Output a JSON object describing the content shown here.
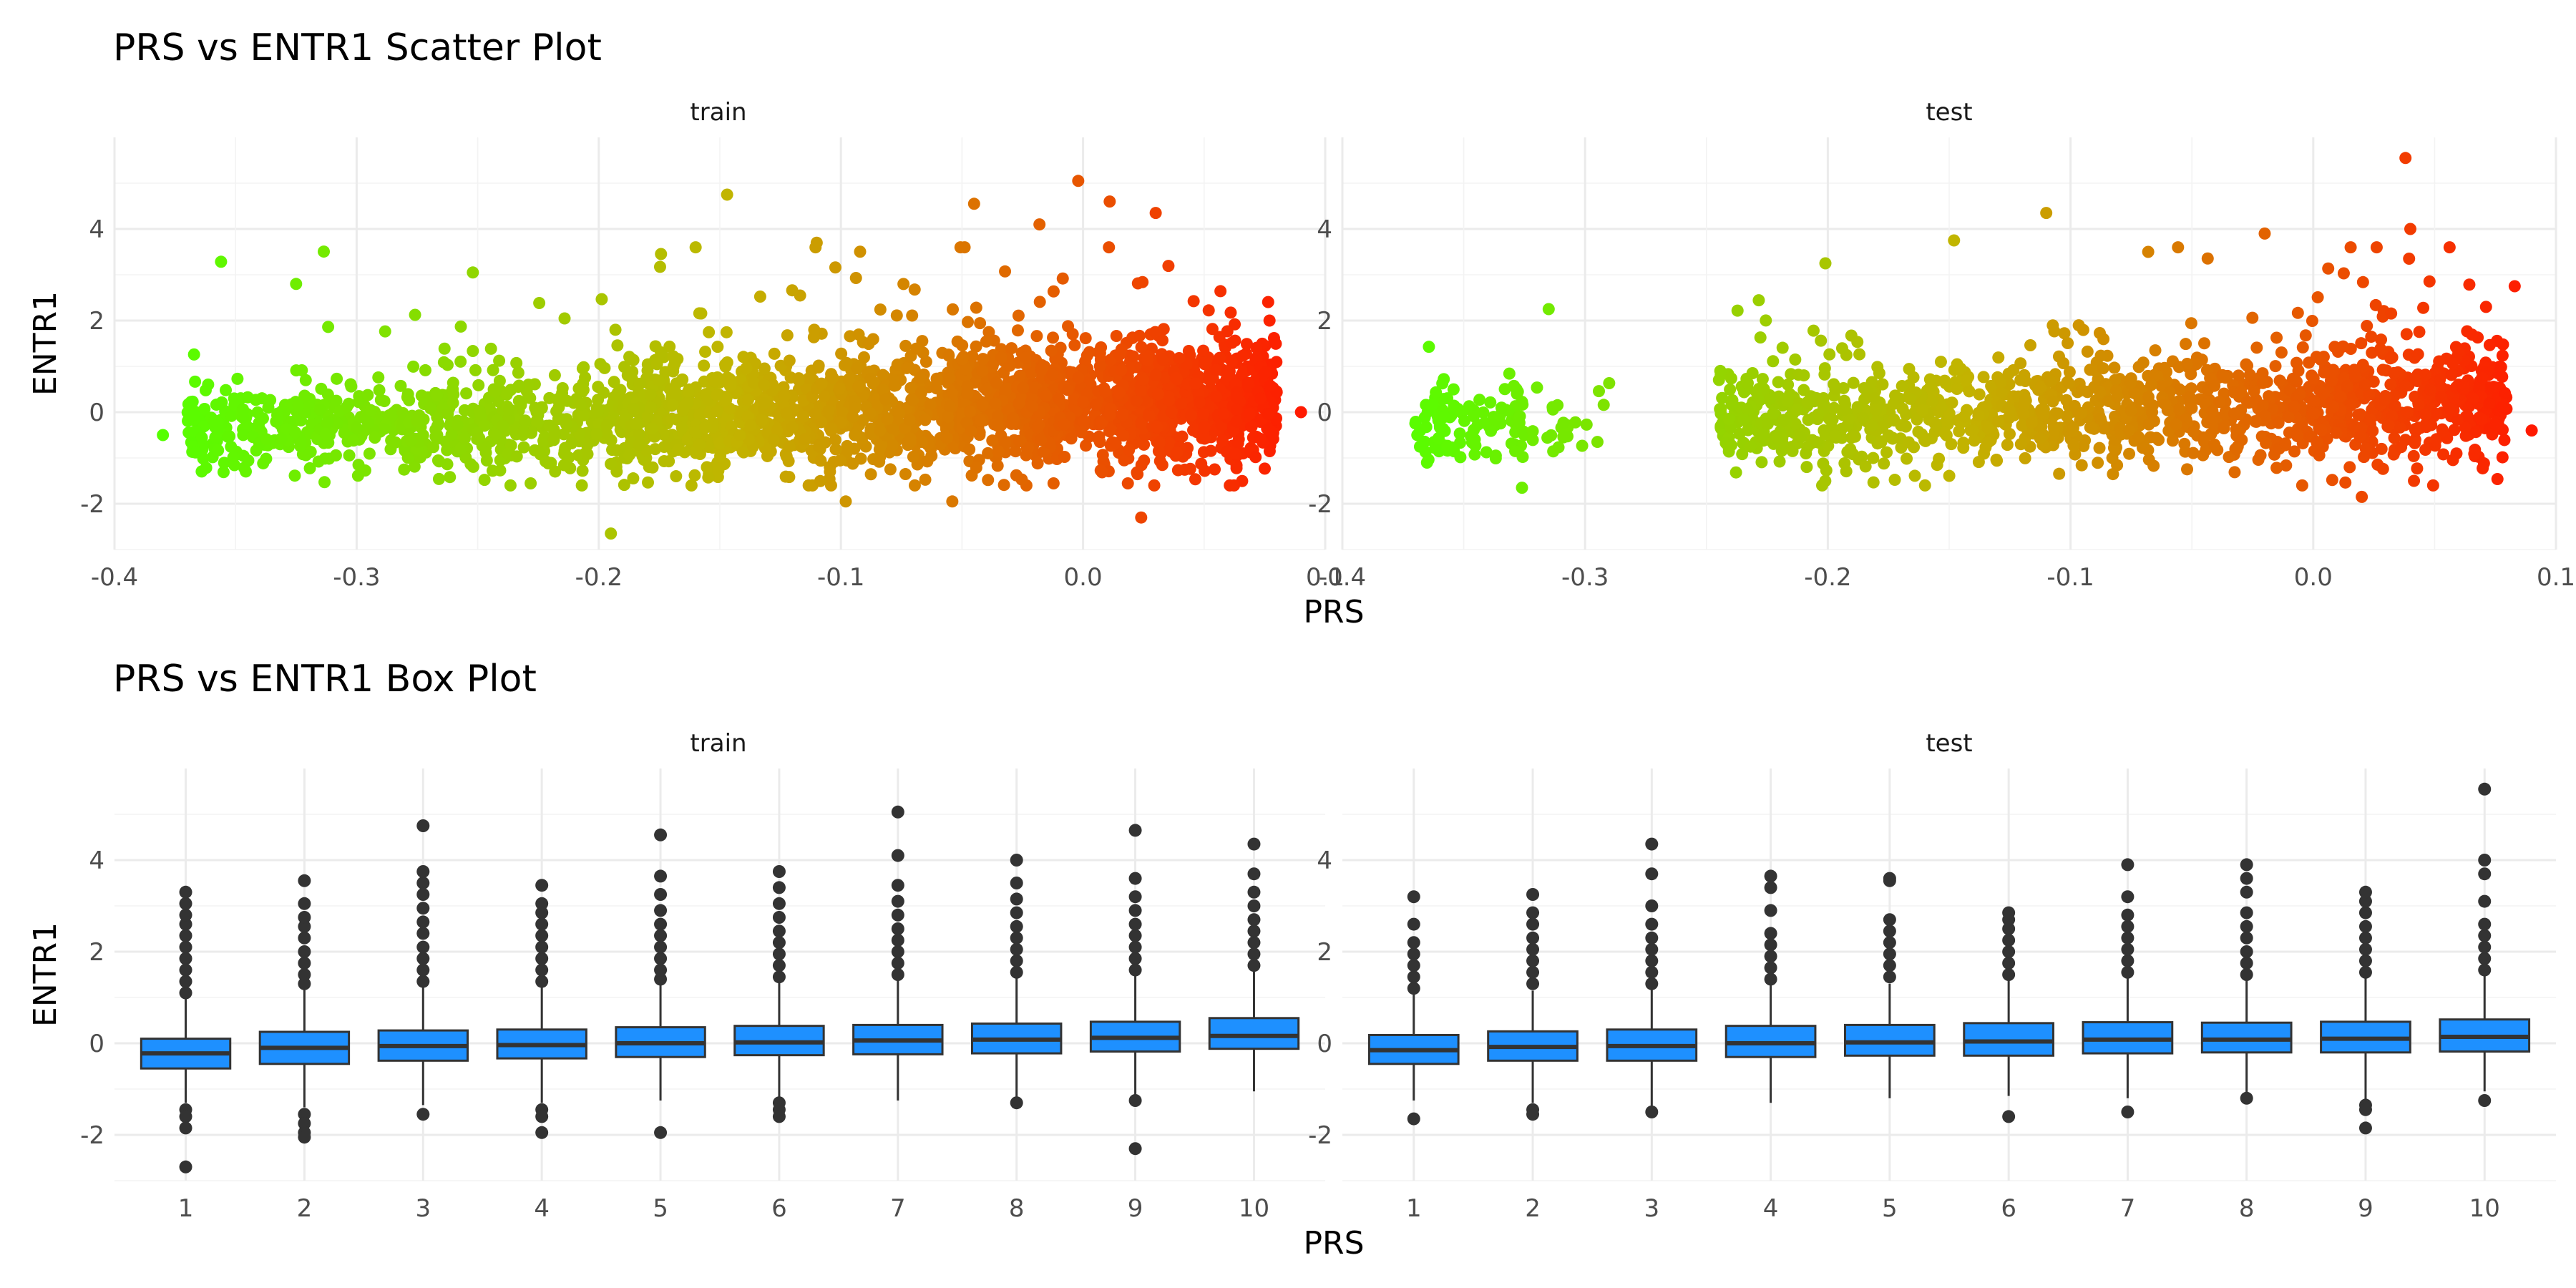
{
  "colors": {
    "low": "#55ff00",
    "mid": "#c2b400",
    "high": "#ff1a00",
    "box_fill": "#1e90ff",
    "box_line": "#333333",
    "outlier": "#333333",
    "grid": "#ebebeb"
  },
  "chart_data": [
    {
      "type": "scatter",
      "title": "PRS vs ENTR1 Scatter Plot",
      "xlabel": "PRS",
      "ylabel": "ENTR1",
      "grid": true,
      "color_scale": "PRS (green to red)",
      "panels": [
        {
          "label": "train",
          "xlim": [
            -0.4,
            0.1
          ],
          "ylim": [
            -3,
            6
          ],
          "xticks": [
            "-0.4",
            "-0.3",
            "-0.2",
            "-0.1",
            "0.0",
            "0.1"
          ],
          "yticks": [
            "-2",
            "0",
            "2",
            "4"
          ],
          "clusters": [
            {
              "x": [
                -0.37,
                -0.27
              ],
              "y_center": -0.3,
              "y_spread": 0.45,
              "n": 320
            },
            {
              "x": [
                -0.27,
                -0.19
              ],
              "y_center": -0.2,
              "y_spread": 0.55,
              "n": 300
            },
            {
              "x": [
                -0.19,
                -0.05
              ],
              "y_center": 0.0,
              "y_spread": 0.65,
              "n": 900
            },
            {
              "x": [
                -0.05,
                0.08
              ],
              "y_center": 0.2,
              "y_spread": 0.7,
              "n": 1100
            }
          ],
          "notable_points": [
            {
              "x": -0.38,
              "y": -0.5
            },
            {
              "x": 0.09,
              "y": 0.0
            },
            {
              "x": -0.147,
              "y": 4.75
            },
            {
              "x": -0.002,
              "y": 5.05
            },
            {
              "x": 0.011,
              "y": 4.6
            },
            {
              "x": -0.045,
              "y": 4.55
            },
            {
              "x": -0.195,
              "y": -2.65
            },
            {
              "x": 0.024,
              "y": -2.3
            },
            {
              "x": -0.098,
              "y": -1.95
            },
            {
              "x": -0.054,
              "y": -1.95
            },
            {
              "x": -0.252,
              "y": 3.05
            },
            {
              "x": -0.325,
              "y": 2.8
            },
            {
              "x": -0.018,
              "y": 4.1
            },
            {
              "x": 0.03,
              "y": 4.35
            },
            {
              "x": 0.077,
              "y": 2.0
            },
            {
              "x": -0.16,
              "y": 3.6
            },
            {
              "x": -0.11,
              "y": 3.7
            }
          ]
        },
        {
          "label": "test",
          "xlim": [
            -0.4,
            0.1
          ],
          "ylim": [
            -3,
            6
          ],
          "xticks": [
            "-0.4",
            "-0.3",
            "-0.2",
            "-0.1",
            "0.0",
            "0.1"
          ],
          "yticks": [
            "-2",
            "0",
            "2",
            "4"
          ],
          "clusters": [
            {
              "x": [
                -0.37,
                -0.325
              ],
              "y_center": -0.3,
              "y_spread": 0.45,
              "n": 110
            },
            {
              "x": [
                -0.325,
                -0.29
              ],
              "y_center": -0.2,
              "y_spread": 0.4,
              "n": 25
            },
            {
              "x": [
                -0.245,
                -0.13
              ],
              "y_center": -0.1,
              "y_spread": 0.55,
              "n": 420
            },
            {
              "x": [
                -0.13,
                0.0
              ],
              "y_center": 0.05,
              "y_spread": 0.6,
              "n": 520
            },
            {
              "x": [
                0.0,
                0.08
              ],
              "y_center": 0.2,
              "y_spread": 0.65,
              "n": 420
            }
          ],
          "notable_points": [
            {
              "x": 0.038,
              "y": 5.55
            },
            {
              "x": -0.11,
              "y": 4.35
            },
            {
              "x": 0.04,
              "y": 4.0
            },
            {
              "x": -0.148,
              "y": 3.75
            },
            {
              "x": -0.201,
              "y": 3.25
            },
            {
              "x": 0.02,
              "y": -1.85
            },
            {
              "x": -0.326,
              "y": -1.65
            },
            {
              "x": 0.09,
              "y": -0.4
            },
            {
              "x": 0.083,
              "y": 2.75
            },
            {
              "x": -0.315,
              "y": 2.25
            },
            {
              "x": -0.02,
              "y": 3.9
            },
            {
              "x": -0.068,
              "y": 3.5
            }
          ]
        }
      ]
    },
    {
      "type": "box",
      "title": "PRS vs ENTR1 Box Plot",
      "xlabel": "PRS",
      "ylabel": "ENTR1",
      "grid": true,
      "categories": [
        "1",
        "2",
        "3",
        "4",
        "5",
        "6",
        "7",
        "8",
        "9",
        "10"
      ],
      "panels": [
        {
          "label": "train",
          "ylim": [
            -3,
            6
          ],
          "yticks": [
            "-2",
            "0",
            "2",
            "4"
          ],
          "boxes": [
            {
              "q1": -0.55,
              "median": -0.22,
              "q3": 0.1,
              "lower": -1.3,
              "upper": 1.05,
              "outliers_high": [
                1.1,
                1.35,
                1.6,
                1.85,
                2.1,
                2.35,
                2.6,
                2.8,
                3.05,
                3.3
              ],
              "outliers_low": [
                -1.45,
                -1.6,
                -1.85,
                -2.7
              ]
            },
            {
              "q1": -0.45,
              "median": -0.1,
              "q3": 0.25,
              "lower": -1.4,
              "upper": 1.2,
              "outliers_high": [
                1.3,
                1.5,
                1.75,
                2.0,
                2.3,
                2.55,
                2.75,
                3.05,
                3.55
              ],
              "outliers_low": [
                -1.55,
                -1.75,
                -1.95,
                -2.05
              ]
            },
            {
              "q1": -0.38,
              "median": -0.06,
              "q3": 0.28,
              "lower": -1.35,
              "upper": 1.25,
              "outliers_high": [
                1.35,
                1.6,
                1.85,
                2.1,
                2.4,
                2.65,
                2.95,
                3.25,
                3.5,
                3.75,
                4.75
              ],
              "outliers_low": [
                -1.55
              ]
            },
            {
              "q1": -0.33,
              "median": -0.04,
              "q3": 0.3,
              "lower": -1.3,
              "upper": 1.25,
              "outliers_high": [
                1.35,
                1.6,
                1.85,
                2.1,
                2.35,
                2.6,
                2.85,
                3.05,
                3.45
              ],
              "outliers_low": [
                -1.45,
                -1.6,
                -1.95
              ]
            },
            {
              "q1": -0.3,
              "median": 0.0,
              "q3": 0.35,
              "lower": -1.25,
              "upper": 1.3,
              "outliers_high": [
                1.4,
                1.6,
                1.85,
                2.1,
                2.35,
                2.6,
                2.9,
                3.25,
                3.65,
                4.55
              ],
              "outliers_low": [
                -1.95
              ]
            },
            {
              "q1": -0.26,
              "median": 0.02,
              "q3": 0.38,
              "lower": -1.2,
              "upper": 1.35,
              "outliers_high": [
                1.45,
                1.7,
                1.95,
                2.2,
                2.45,
                2.75,
                3.05,
                3.4,
                3.75
              ],
              "outliers_low": [
                -1.3,
                -1.45,
                -1.6
              ]
            },
            {
              "q1": -0.24,
              "median": 0.06,
              "q3": 0.4,
              "lower": -1.25,
              "upper": 1.4,
              "outliers_high": [
                1.5,
                1.75,
                2.0,
                2.25,
                2.5,
                2.8,
                3.1,
                3.45,
                4.1,
                5.05
              ],
              "outliers_low": []
            },
            {
              "q1": -0.22,
              "median": 0.08,
              "q3": 0.43,
              "lower": -1.2,
              "upper": 1.45,
              "outliers_high": [
                1.55,
                1.8,
                2.05,
                2.3,
                2.55,
                2.85,
                3.15,
                3.5,
                4.0
              ],
              "outliers_low": [
                -1.3
              ]
            },
            {
              "q1": -0.18,
              "median": 0.12,
              "q3": 0.47,
              "lower": -1.15,
              "upper": 1.5,
              "outliers_high": [
                1.6,
                1.85,
                2.1,
                2.35,
                2.6,
                2.9,
                3.2,
                3.6,
                4.65
              ],
              "outliers_low": [
                -1.25,
                -2.3
              ]
            },
            {
              "q1": -0.12,
              "median": 0.16,
              "q3": 0.55,
              "lower": -1.05,
              "upper": 1.6,
              "outliers_high": [
                1.7,
                1.95,
                2.2,
                2.45,
                2.7,
                3.0,
                3.3,
                3.7,
                4.35
              ],
              "outliers_low": []
            }
          ]
        },
        {
          "label": "test",
          "ylim": [
            -3,
            6
          ],
          "yticks": [
            "-2",
            "0",
            "2",
            "4"
          ],
          "boxes": [
            {
              "q1": -0.45,
              "median": -0.15,
              "q3": 0.18,
              "lower": -1.25,
              "upper": 1.1,
              "outliers_high": [
                1.2,
                1.45,
                1.7,
                1.95,
                2.2,
                2.6,
                3.2
              ],
              "outliers_low": [
                -1.65
              ]
            },
            {
              "q1": -0.38,
              "median": -0.08,
              "q3": 0.26,
              "lower": -1.3,
              "upper": 1.15,
              "outliers_high": [
                1.3,
                1.55,
                1.8,
                2.05,
                2.3,
                2.6,
                2.85,
                3.25
              ],
              "outliers_low": [
                -1.45,
                -1.55
              ]
            },
            {
              "q1": -0.38,
              "median": -0.06,
              "q3": 0.3,
              "lower": -1.4,
              "upper": 1.2,
              "outliers_high": [
                1.3,
                1.55,
                1.8,
                2.05,
                2.3,
                2.6,
                3.0,
                3.7,
                4.35
              ],
              "outliers_low": [
                -1.5
              ]
            },
            {
              "q1": -0.3,
              "median": 0.0,
              "q3": 0.38,
              "lower": -1.3,
              "upper": 1.3,
              "outliers_high": [
                1.4,
                1.65,
                1.9,
                2.15,
                2.4,
                2.9,
                3.4,
                3.65
              ],
              "outliers_low": []
            },
            {
              "q1": -0.27,
              "median": 0.02,
              "q3": 0.4,
              "lower": -1.2,
              "upper": 1.3,
              "outliers_high": [
                1.45,
                1.7,
                1.95,
                2.2,
                2.45,
                2.7,
                3.55,
                3.6
              ],
              "outliers_low": []
            },
            {
              "q1": -0.27,
              "median": 0.04,
              "q3": 0.44,
              "lower": -1.15,
              "upper": 1.4,
              "outliers_high": [
                1.5,
                1.75,
                2.0,
                2.25,
                2.5,
                2.7,
                2.85
              ],
              "outliers_low": [
                -1.6
              ]
            },
            {
              "q1": -0.22,
              "median": 0.08,
              "q3": 0.46,
              "lower": -1.2,
              "upper": 1.45,
              "outliers_high": [
                1.55,
                1.8,
                2.05,
                2.3,
                2.55,
                2.8,
                3.2,
                3.9
              ],
              "outliers_low": [
                -1.5
              ]
            },
            {
              "q1": -0.2,
              "median": 0.08,
              "q3": 0.45,
              "lower": -1.1,
              "upper": 1.4,
              "outliers_high": [
                1.5,
                1.75,
                2.0,
                2.3,
                2.55,
                2.85,
                3.3,
                3.6,
                3.9
              ],
              "outliers_low": [
                -1.2
              ]
            },
            {
              "q1": -0.2,
              "median": 0.1,
              "q3": 0.47,
              "lower": -1.25,
              "upper": 1.45,
              "outliers_high": [
                1.55,
                1.8,
                2.05,
                2.3,
                2.55,
                2.85,
                3.1,
                3.3
              ],
              "outliers_low": [
                -1.35,
                -1.45,
                -1.85
              ]
            },
            {
              "q1": -0.18,
              "median": 0.14,
              "q3": 0.52,
              "lower": -1.05,
              "upper": 1.5,
              "outliers_high": [
                1.6,
                1.85,
                2.1,
                2.35,
                2.6,
                3.1,
                3.7,
                4.0,
                5.55
              ],
              "outliers_low": [
                -1.25
              ]
            }
          ]
        }
      ]
    }
  ]
}
